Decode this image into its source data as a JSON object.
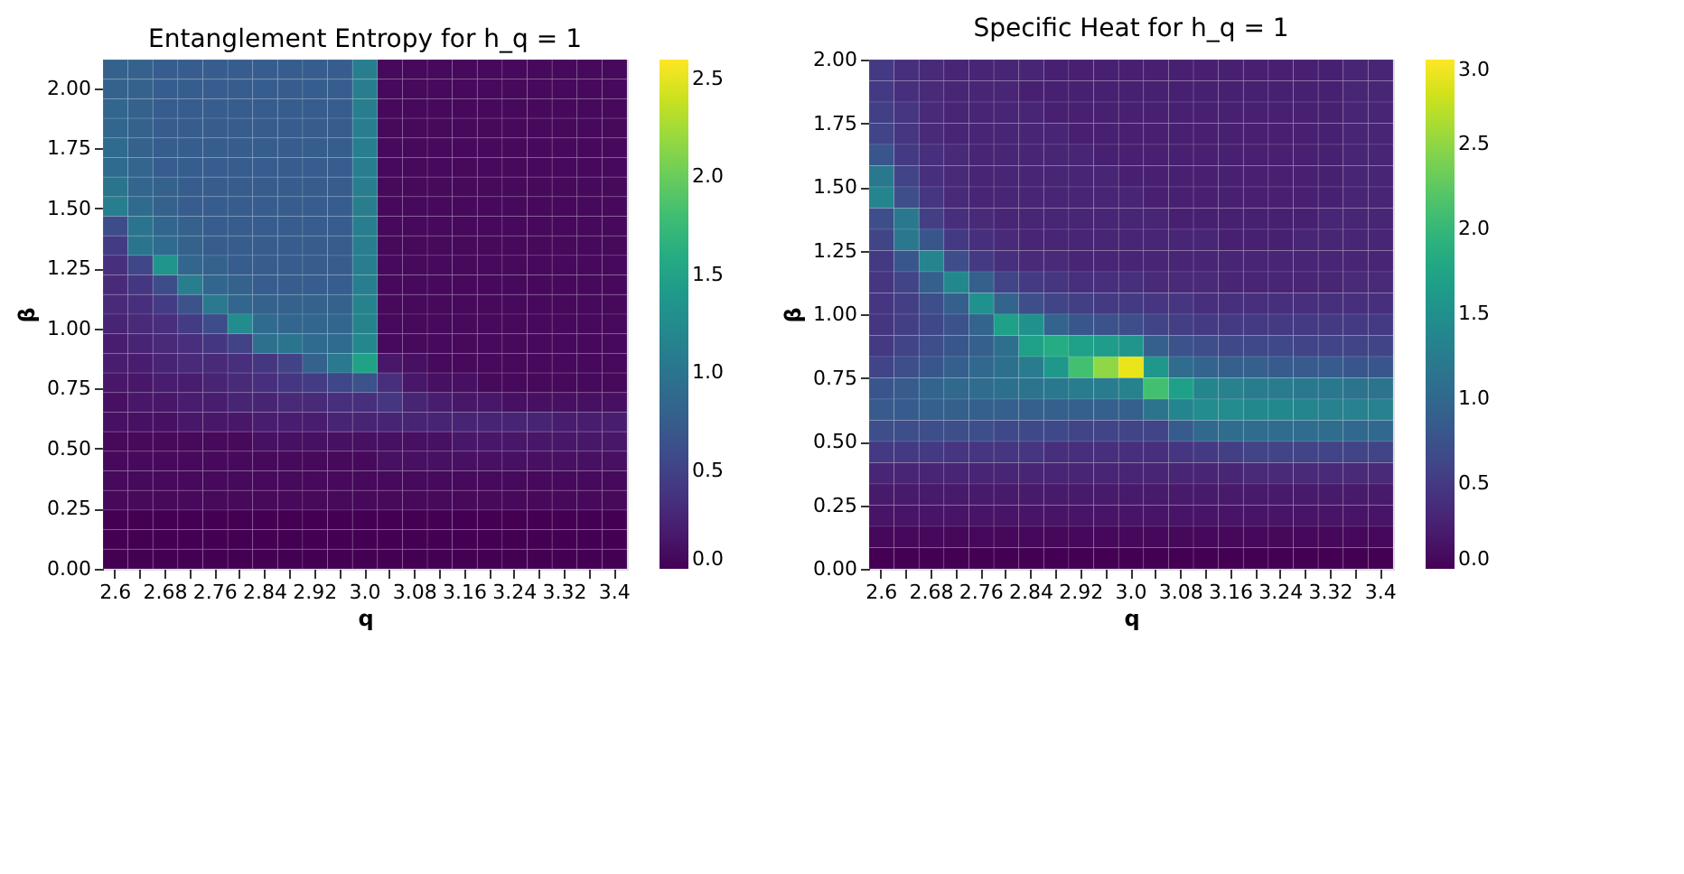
{
  "chart_data": [
    {
      "type": "heatmap",
      "title": "Entanglement Entropy for h_q = 1",
      "xlabel": "q",
      "ylabel": "β",
      "categories": [
        "2.6",
        null,
        "2.68",
        null,
        "2.76",
        null,
        "2.84",
        null,
        "2.92",
        null,
        "3.0",
        null,
        "3.08",
        null,
        "3.16",
        null,
        "3.24",
        null,
        "3.32",
        null,
        "3.4"
      ],
      "ylim": [
        0,
        2.12
      ],
      "yticks": [
        {
          "value": 0,
          "label": "0.00"
        },
        {
          "value": 0.25,
          "label": "0.25"
        },
        {
          "value": 0.5,
          "label": "0.50"
        },
        {
          "value": 0.75,
          "label": "0.75"
        },
        {
          "value": 1.0,
          "label": "1.00"
        },
        {
          "value": 1.25,
          "label": "1.25"
        },
        {
          "value": 1.5,
          "label": "1.50"
        },
        {
          "value": 1.75,
          "label": "1.75"
        },
        {
          "value": 2.0,
          "label": "2.00"
        }
      ],
      "clim": [
        0,
        2.6
      ],
      "cticks": [
        {
          "value": 0,
          "label": "0.0"
        },
        {
          "value": 0.5,
          "label": "0.5"
        },
        {
          "value": 1.0,
          "label": "1.0"
        },
        {
          "value": 1.5,
          "label": "1.5"
        },
        {
          "value": 2.0,
          "label": "2.0"
        },
        {
          "value": 2.5,
          "label": "2.5"
        }
      ],
      "cells": [
        [
          0.8,
          0.8,
          0.75,
          0.75,
          0.75,
          0.75,
          0.75,
          0.75,
          0.75,
          0.75,
          1.1,
          0.05,
          0.05,
          0.05,
          0.05,
          0.05,
          0.05,
          0.05,
          0.05,
          0.05,
          0.05
        ],
        [
          0.8,
          0.8,
          0.75,
          0.75,
          0.75,
          0.75,
          0.75,
          0.75,
          0.75,
          0.75,
          1.1,
          0.05,
          0.05,
          0.05,
          0.05,
          0.05,
          0.05,
          0.05,
          0.05,
          0.05,
          0.05
        ],
        [
          0.85,
          0.8,
          0.75,
          0.75,
          0.75,
          0.75,
          0.75,
          0.75,
          0.75,
          0.75,
          1.1,
          0.05,
          0.05,
          0.05,
          0.05,
          0.05,
          0.05,
          0.05,
          0.05,
          0.05,
          0.05
        ],
        [
          0.85,
          0.8,
          0.75,
          0.75,
          0.75,
          0.75,
          0.75,
          0.75,
          0.75,
          0.75,
          1.1,
          0.05,
          0.05,
          0.05,
          0.05,
          0.05,
          0.05,
          0.05,
          0.05,
          0.05,
          0.05
        ],
        [
          0.9,
          0.8,
          0.75,
          0.75,
          0.75,
          0.75,
          0.75,
          0.75,
          0.75,
          0.75,
          1.1,
          0.05,
          0.05,
          0.05,
          0.05,
          0.05,
          0.05,
          0.05,
          0.05,
          0.05,
          0.05
        ],
        [
          0.9,
          0.85,
          0.75,
          0.75,
          0.75,
          0.75,
          0.75,
          0.75,
          0.75,
          0.75,
          1.1,
          0.05,
          0.05,
          0.05,
          0.05,
          0.05,
          0.05,
          0.05,
          0.05,
          0.05,
          0.05
        ],
        [
          1.0,
          0.85,
          0.8,
          0.75,
          0.75,
          0.75,
          0.75,
          0.75,
          0.75,
          0.75,
          1.1,
          0.05,
          0.05,
          0.05,
          0.05,
          0.05,
          0.05,
          0.05,
          0.05,
          0.05,
          0.05
        ],
        [
          1.1,
          0.9,
          0.8,
          0.75,
          0.75,
          0.75,
          0.75,
          0.75,
          0.75,
          0.75,
          1.1,
          0.05,
          0.05,
          0.05,
          0.05,
          0.05,
          0.05,
          0.05,
          0.05,
          0.05,
          0.05
        ],
        [
          0.6,
          1.0,
          0.85,
          0.8,
          0.75,
          0.75,
          0.75,
          0.75,
          0.75,
          0.75,
          1.1,
          0.05,
          0.05,
          0.05,
          0.05,
          0.05,
          0.05,
          0.05,
          0.05,
          0.05,
          0.05
        ],
        [
          0.45,
          1.0,
          0.9,
          0.8,
          0.75,
          0.75,
          0.75,
          0.75,
          0.75,
          0.75,
          1.1,
          0.05,
          0.05,
          0.05,
          0.05,
          0.05,
          0.05,
          0.05,
          0.05,
          0.05,
          0.05
        ],
        [
          0.35,
          0.55,
          1.35,
          0.85,
          0.8,
          0.75,
          0.75,
          0.75,
          0.75,
          0.75,
          1.1,
          0.05,
          0.05,
          0.05,
          0.05,
          0.05,
          0.05,
          0.05,
          0.05,
          0.05,
          0.05
        ],
        [
          0.3,
          0.4,
          0.6,
          1.1,
          0.85,
          0.8,
          0.75,
          0.75,
          0.75,
          0.75,
          1.1,
          0.05,
          0.05,
          0.05,
          0.05,
          0.05,
          0.05,
          0.05,
          0.05,
          0.05,
          0.05
        ],
        [
          0.3,
          0.35,
          0.45,
          0.65,
          1.05,
          0.85,
          0.8,
          0.8,
          0.8,
          0.8,
          1.15,
          0.05,
          0.05,
          0.05,
          0.05,
          0.05,
          0.05,
          0.05,
          0.05,
          0.05,
          0.05
        ],
        [
          0.25,
          0.3,
          0.35,
          0.45,
          0.6,
          1.25,
          0.9,
          0.85,
          0.85,
          0.85,
          1.15,
          0.05,
          0.05,
          0.05,
          0.05,
          0.05,
          0.05,
          0.05,
          0.05,
          0.05,
          0.05
        ],
        [
          0.2,
          0.25,
          0.3,
          0.35,
          0.4,
          0.5,
          0.95,
          1.0,
          0.9,
          0.9,
          1.2,
          0.05,
          0.05,
          0.05,
          0.05,
          0.05,
          0.05,
          0.05,
          0.05,
          0.05,
          0.05
        ],
        [
          0.2,
          0.2,
          0.25,
          0.3,
          0.3,
          0.35,
          0.4,
          0.5,
          0.8,
          1.05,
          1.5,
          0.15,
          0.1,
          0.05,
          0.05,
          0.05,
          0.05,
          0.05,
          0.05,
          0.05,
          0.05
        ],
        [
          0.15,
          0.15,
          0.2,
          0.2,
          0.25,
          0.3,
          0.35,
          0.4,
          0.45,
          0.55,
          0.65,
          0.35,
          0.15,
          0.1,
          0.1,
          0.05,
          0.05,
          0.05,
          0.05,
          0.05,
          0.05
        ],
        [
          0.1,
          0.15,
          0.15,
          0.2,
          0.2,
          0.25,
          0.25,
          0.3,
          0.3,
          0.35,
          0.35,
          0.4,
          0.25,
          0.2,
          0.15,
          0.15,
          0.1,
          0.1,
          0.1,
          0.1,
          0.1
        ],
        [
          0.1,
          0.1,
          0.1,
          0.15,
          0.15,
          0.15,
          0.2,
          0.2,
          0.2,
          0.25,
          0.25,
          0.25,
          0.25,
          0.25,
          0.25,
          0.25,
          0.25,
          0.25,
          0.2,
          0.2,
          0.2
        ],
        [
          0.05,
          0.05,
          0.05,
          0.05,
          0.05,
          0.05,
          0.1,
          0.1,
          0.1,
          0.1,
          0.1,
          0.1,
          0.1,
          0.1,
          0.15,
          0.15,
          0.15,
          0.15,
          0.15,
          0.15,
          0.15
        ],
        [
          0.05,
          0.05,
          0.05,
          0.05,
          0.05,
          0.05,
          0.05,
          0.05,
          0.05,
          0.05,
          0.05,
          0.1,
          0.1,
          0.1,
          0.1,
          0.1,
          0.1,
          0.1,
          0.1,
          0.1,
          0.1
        ],
        [
          0.05,
          0.05,
          0.05,
          0.05,
          0.05,
          0.05,
          0.05,
          0.05,
          0.05,
          0.05,
          0.05,
          0.05,
          0.05,
          0.05,
          0.05,
          0.05,
          0.05,
          0.05,
          0.05,
          0.05,
          0.05
        ],
        [
          0.05,
          0.05,
          0.05,
          0.05,
          0.05,
          0.05,
          0.05,
          0.05,
          0.05,
          0.05,
          0.05,
          0.05,
          0.05,
          0.05,
          0.05,
          0.05,
          0.05,
          0.05,
          0.05,
          0.05,
          0.05
        ],
        [
          0.0,
          0.0,
          0.0,
          0.0,
          0.0,
          0.0,
          0.0,
          0.0,
          0.0,
          0.0,
          0.0,
          0.0,
          0.0,
          0.0,
          0.0,
          0.0,
          0.0,
          0.0,
          0.0,
          0.0,
          0.0
        ],
        [
          0.0,
          0.0,
          0.0,
          0.0,
          0.0,
          0.0,
          0.0,
          0.0,
          0.0,
          0.0,
          0.0,
          0.0,
          0.0,
          0.0,
          0.0,
          0.0,
          0.0,
          0.0,
          0.0,
          0.0,
          0.0
        ],
        [
          0.0,
          0.0,
          0.0,
          0.0,
          0.0,
          0.0,
          0.0,
          0.0,
          0.0,
          0.0,
          0.0,
          0.0,
          0.0,
          0.0,
          0.0,
          0.0,
          0.0,
          0.0,
          0.0,
          0.0,
          0.0
        ]
      ]
    },
    {
      "type": "heatmap",
      "title": "Specific Heat for h_q = 1",
      "xlabel": "q",
      "ylabel": "β",
      "categories": [
        "2.6",
        null,
        "2.68",
        null,
        "2.76",
        null,
        "2.84",
        null,
        "2.92",
        null,
        "3.0",
        null,
        "3.08",
        null,
        "3.16",
        null,
        "3.24",
        null,
        "3.32",
        null,
        "3.4"
      ],
      "ylim": [
        0,
        2.0
      ],
      "yticks": [
        {
          "value": 0,
          "label": "0.00"
        },
        {
          "value": 0.25,
          "label": "0.25"
        },
        {
          "value": 0.5,
          "label": "0.50"
        },
        {
          "value": 0.75,
          "label": "0.75"
        },
        {
          "value": 1.0,
          "label": "1.00"
        },
        {
          "value": 1.25,
          "label": "1.25"
        },
        {
          "value": 1.5,
          "label": "1.50"
        },
        {
          "value": 1.75,
          "label": "1.75"
        },
        {
          "value": 2.0,
          "label": "2.00"
        }
      ],
      "clim": [
        0,
        3.0
      ],
      "cticks": [
        {
          "value": 0,
          "label": "0.0"
        },
        {
          "value": 0.5,
          "label": "0.5"
        },
        {
          "value": 1.0,
          "label": "1.0"
        },
        {
          "value": 1.5,
          "label": "1.5"
        },
        {
          "value": 2.0,
          "label": "2.0"
        },
        {
          "value": 2.5,
          "label": "2.5"
        },
        {
          "value": 3.0,
          "label": "3.0"
        }
      ],
      "cells": [
        [
          0.5,
          0.4,
          0.35,
          0.3,
          0.3,
          0.3,
          0.3,
          0.25,
          0.25,
          0.25,
          0.25,
          0.25,
          0.25,
          0.25,
          0.25,
          0.25,
          0.25,
          0.25,
          0.25,
          0.3,
          0.3
        ],
        [
          0.5,
          0.4,
          0.35,
          0.3,
          0.3,
          0.3,
          0.25,
          0.25,
          0.25,
          0.25,
          0.25,
          0.25,
          0.25,
          0.25,
          0.25,
          0.25,
          0.25,
          0.25,
          0.25,
          0.3,
          0.3
        ],
        [
          0.55,
          0.45,
          0.35,
          0.3,
          0.3,
          0.3,
          0.3,
          0.25,
          0.25,
          0.25,
          0.25,
          0.25,
          0.25,
          0.25,
          0.25,
          0.25,
          0.25,
          0.25,
          0.25,
          0.3,
          0.3
        ],
        [
          0.6,
          0.45,
          0.35,
          0.3,
          0.3,
          0.3,
          0.3,
          0.3,
          0.25,
          0.25,
          0.25,
          0.25,
          0.25,
          0.25,
          0.25,
          0.25,
          0.25,
          0.25,
          0.25,
          0.3,
          0.3
        ],
        [
          0.8,
          0.5,
          0.4,
          0.35,
          0.3,
          0.3,
          0.3,
          0.3,
          0.3,
          0.25,
          0.25,
          0.25,
          0.25,
          0.25,
          0.25,
          0.25,
          0.25,
          0.25,
          0.25,
          0.3,
          0.3
        ],
        [
          1.2,
          0.6,
          0.4,
          0.35,
          0.3,
          0.3,
          0.3,
          0.3,
          0.3,
          0.3,
          0.25,
          0.25,
          0.25,
          0.25,
          0.25,
          0.25,
          0.25,
          0.25,
          0.25,
          0.3,
          0.3
        ],
        [
          1.35,
          0.7,
          0.45,
          0.35,
          0.3,
          0.3,
          0.3,
          0.3,
          0.3,
          0.3,
          0.3,
          0.25,
          0.25,
          0.25,
          0.25,
          0.25,
          0.25,
          0.25,
          0.25,
          0.3,
          0.3
        ],
        [
          0.7,
          1.2,
          0.55,
          0.4,
          0.35,
          0.3,
          0.3,
          0.3,
          0.3,
          0.3,
          0.3,
          0.3,
          0.25,
          0.25,
          0.25,
          0.25,
          0.25,
          0.25,
          0.3,
          0.3,
          0.3
        ],
        [
          0.6,
          1.2,
          0.8,
          0.5,
          0.4,
          0.35,
          0.3,
          0.3,
          0.3,
          0.3,
          0.3,
          0.3,
          0.3,
          0.3,
          0.25,
          0.25,
          0.25,
          0.3,
          0.3,
          0.3,
          0.3
        ],
        [
          0.5,
          0.8,
          1.35,
          0.7,
          0.5,
          0.4,
          0.35,
          0.35,
          0.3,
          0.3,
          0.3,
          0.3,
          0.3,
          0.3,
          0.3,
          0.3,
          0.3,
          0.3,
          0.3,
          0.3,
          0.3
        ],
        [
          0.45,
          0.6,
          0.9,
          1.4,
          0.9,
          0.6,
          0.5,
          0.45,
          0.4,
          0.4,
          0.4,
          0.35,
          0.35,
          0.35,
          0.3,
          0.3,
          0.3,
          0.3,
          0.3,
          0.35,
          0.35
        ],
        [
          0.45,
          0.55,
          0.7,
          0.9,
          1.5,
          0.95,
          0.7,
          0.6,
          0.55,
          0.5,
          0.5,
          0.45,
          0.45,
          0.4,
          0.4,
          0.4,
          0.4,
          0.4,
          0.4,
          0.4,
          0.4
        ],
        [
          0.45,
          0.55,
          0.65,
          0.75,
          0.95,
          1.7,
          1.5,
          0.95,
          0.8,
          0.75,
          0.7,
          0.6,
          0.55,
          0.5,
          0.5,
          0.5,
          0.5,
          0.5,
          0.5,
          0.5,
          0.5
        ],
        [
          0.5,
          0.6,
          0.7,
          0.8,
          0.9,
          1.1,
          1.7,
          1.85,
          1.7,
          1.65,
          1.55,
          0.9,
          0.75,
          0.7,
          0.65,
          0.65,
          0.65,
          0.6,
          0.6,
          0.6,
          0.6
        ],
        [
          0.6,
          0.7,
          0.8,
          0.9,
          1.0,
          1.1,
          1.25,
          1.6,
          2.1,
          2.5,
          2.9,
          1.6,
          1.05,
          0.95,
          0.9,
          0.9,
          0.85,
          0.85,
          0.85,
          0.8,
          0.8
        ],
        [
          0.8,
          0.85,
          0.95,
          1.0,
          1.05,
          1.1,
          1.15,
          1.2,
          1.25,
          1.25,
          1.3,
          2.1,
          1.7,
          1.35,
          1.3,
          1.25,
          1.25,
          1.2,
          1.2,
          1.15,
          1.15
        ],
        [
          0.85,
          0.85,
          0.9,
          0.9,
          0.9,
          0.9,
          0.9,
          0.9,
          0.9,
          0.9,
          0.9,
          1.15,
          1.35,
          1.45,
          1.45,
          1.4,
          1.4,
          1.35,
          1.3,
          1.3,
          1.3
        ],
        [
          0.7,
          0.7,
          0.7,
          0.7,
          0.7,
          0.65,
          0.65,
          0.65,
          0.6,
          0.6,
          0.6,
          0.6,
          0.85,
          1.0,
          1.05,
          1.05,
          1.05,
          1.05,
          1.05,
          1.0,
          1.0
        ],
        [
          0.5,
          0.5,
          0.5,
          0.45,
          0.45,
          0.45,
          0.45,
          0.4,
          0.4,
          0.4,
          0.4,
          0.4,
          0.45,
          0.5,
          0.55,
          0.6,
          0.6,
          0.6,
          0.6,
          0.6,
          0.6
        ],
        [
          0.3,
          0.3,
          0.3,
          0.3,
          0.3,
          0.3,
          0.3,
          0.3,
          0.3,
          0.3,
          0.3,
          0.3,
          0.3,
          0.3,
          0.3,
          0.35,
          0.35,
          0.35,
          0.35,
          0.35,
          0.35
        ],
        [
          0.2,
          0.2,
          0.2,
          0.2,
          0.2,
          0.2,
          0.2,
          0.2,
          0.2,
          0.2,
          0.2,
          0.2,
          0.2,
          0.2,
          0.2,
          0.2,
          0.2,
          0.2,
          0.2,
          0.2,
          0.2
        ],
        [
          0.15,
          0.15,
          0.15,
          0.15,
          0.15,
          0.15,
          0.15,
          0.15,
          0.15,
          0.15,
          0.15,
          0.15,
          0.15,
          0.15,
          0.15,
          0.15,
          0.15,
          0.15,
          0.15,
          0.15,
          0.15
        ],
        [
          0.05,
          0.05,
          0.05,
          0.05,
          0.05,
          0.05,
          0.05,
          0.05,
          0.05,
          0.05,
          0.05,
          0.05,
          0.05,
          0.05,
          0.05,
          0.05,
          0.05,
          0.05,
          0.05,
          0.05,
          0.05
        ],
        [
          0.0,
          0.0,
          0.0,
          0.0,
          0.0,
          0.0,
          0.0,
          0.0,
          0.0,
          0.0,
          0.0,
          0.0,
          0.0,
          0.0,
          0.0,
          0.0,
          0.0,
          0.0,
          0.0,
          0.0,
          0.0
        ]
      ]
    }
  ]
}
